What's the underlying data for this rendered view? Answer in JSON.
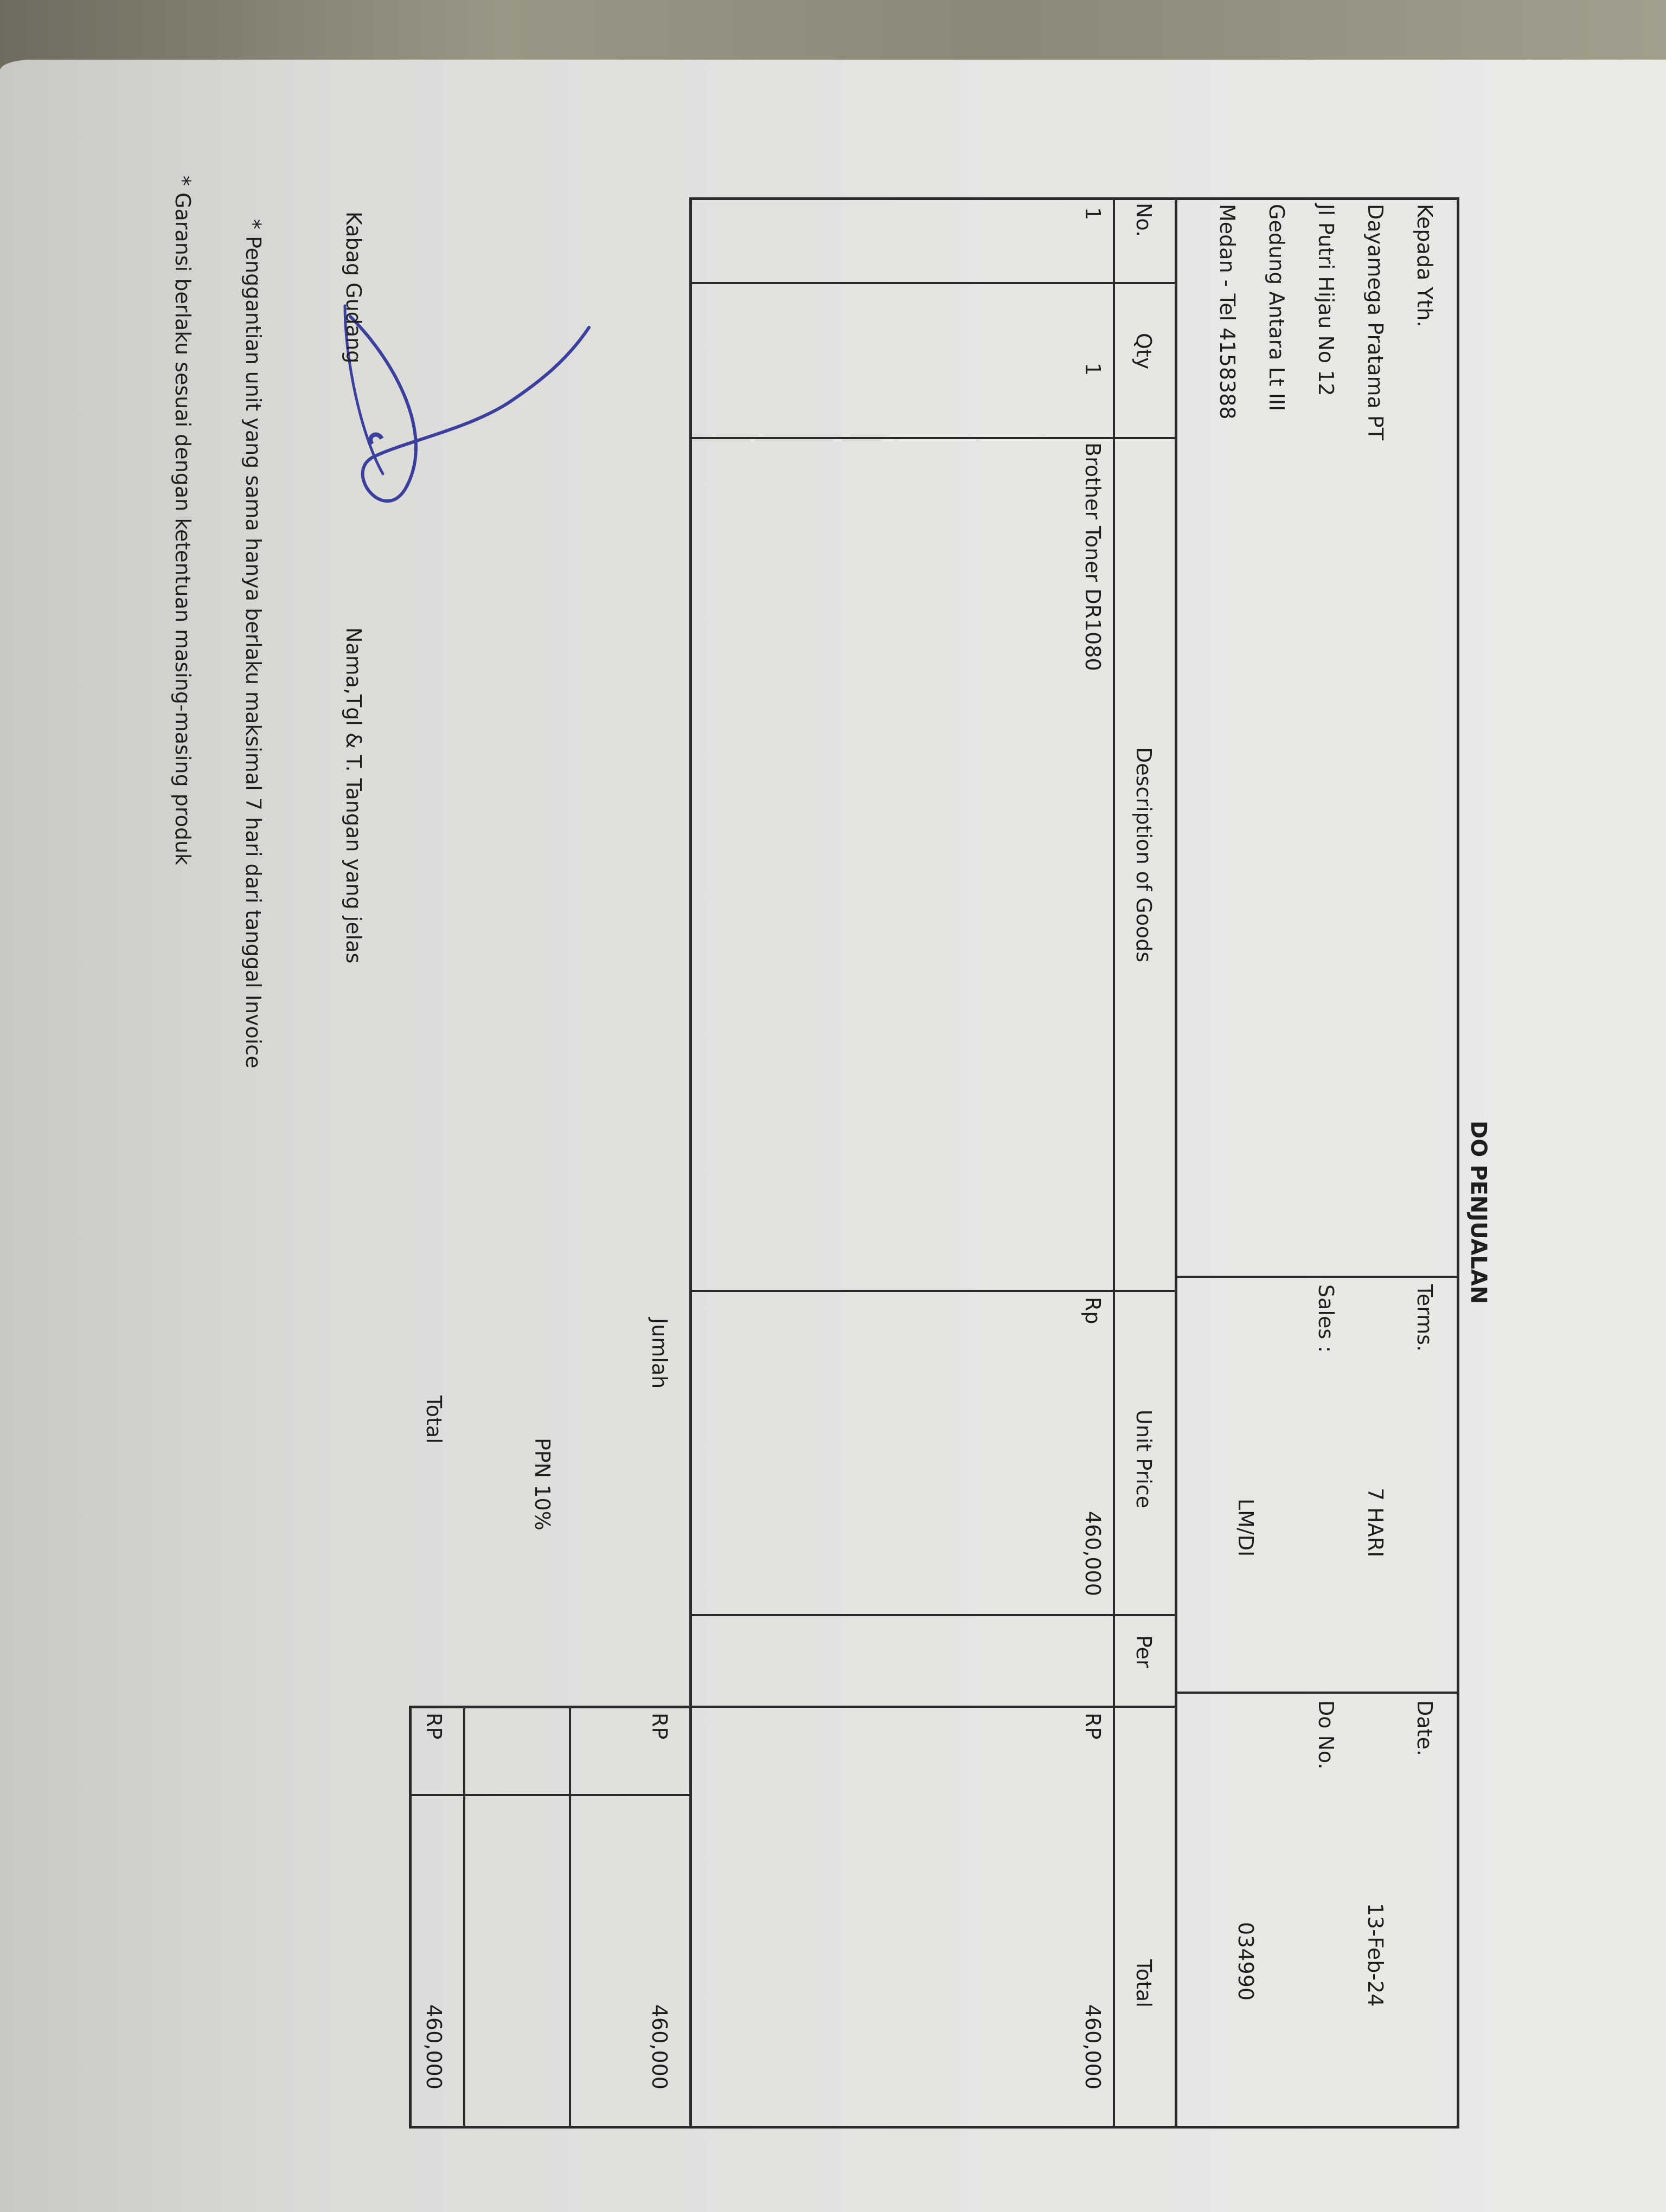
{
  "document": {
    "title": "DO PENJUALAN",
    "recipient": {
      "label": "Kepada Yth.",
      "lines": [
        "Dayamega Pratama PT",
        "Jl Putri Hijau No 12",
        "Gedung Antara Lt III",
        "Medan - Tel 4158388"
      ]
    },
    "meta": {
      "terms_label": "Terms.",
      "terms_value": "7 HARI",
      "sales_label": "Sales :",
      "sales_value": "LM/DI",
      "date_label": "Date.",
      "date_value": "13-Feb-24",
      "do_no_label": "Do No.",
      "do_no_value": "034990"
    },
    "table": {
      "headers": [
        "No.",
        "Qty",
        "Description of Goods",
        "Unit Price",
        "Per",
        "Total"
      ],
      "rows": [
        {
          "no": "1",
          "qty": "1",
          "description": "Brother Toner DR1080",
          "price_currency": "Rp",
          "unit_price": "460,000",
          "total_currency": "RP",
          "total": "460,000"
        }
      ]
    },
    "summary": {
      "jumlah_label": "Jumlah",
      "jumlah_currency": "RP",
      "jumlah_value": "460,000",
      "ppn_label": "PPN 10%",
      "total_label": "Total",
      "total_currency": "RP",
      "total_value": "460,000"
    },
    "signature": {
      "role": "Kabag Gudang",
      "instruction": "Nama,Tgl & T. Tangan yang jelas",
      "ink_color": "#3b3f9e"
    },
    "notes": [
      "* Penggantian unit yang sama hanya berlaku maksimal 7 hari dari tanggal Invoice",
      "* Garansi berlaku sesuai dengan ketentuan masing-masing produk"
    ]
  }
}
